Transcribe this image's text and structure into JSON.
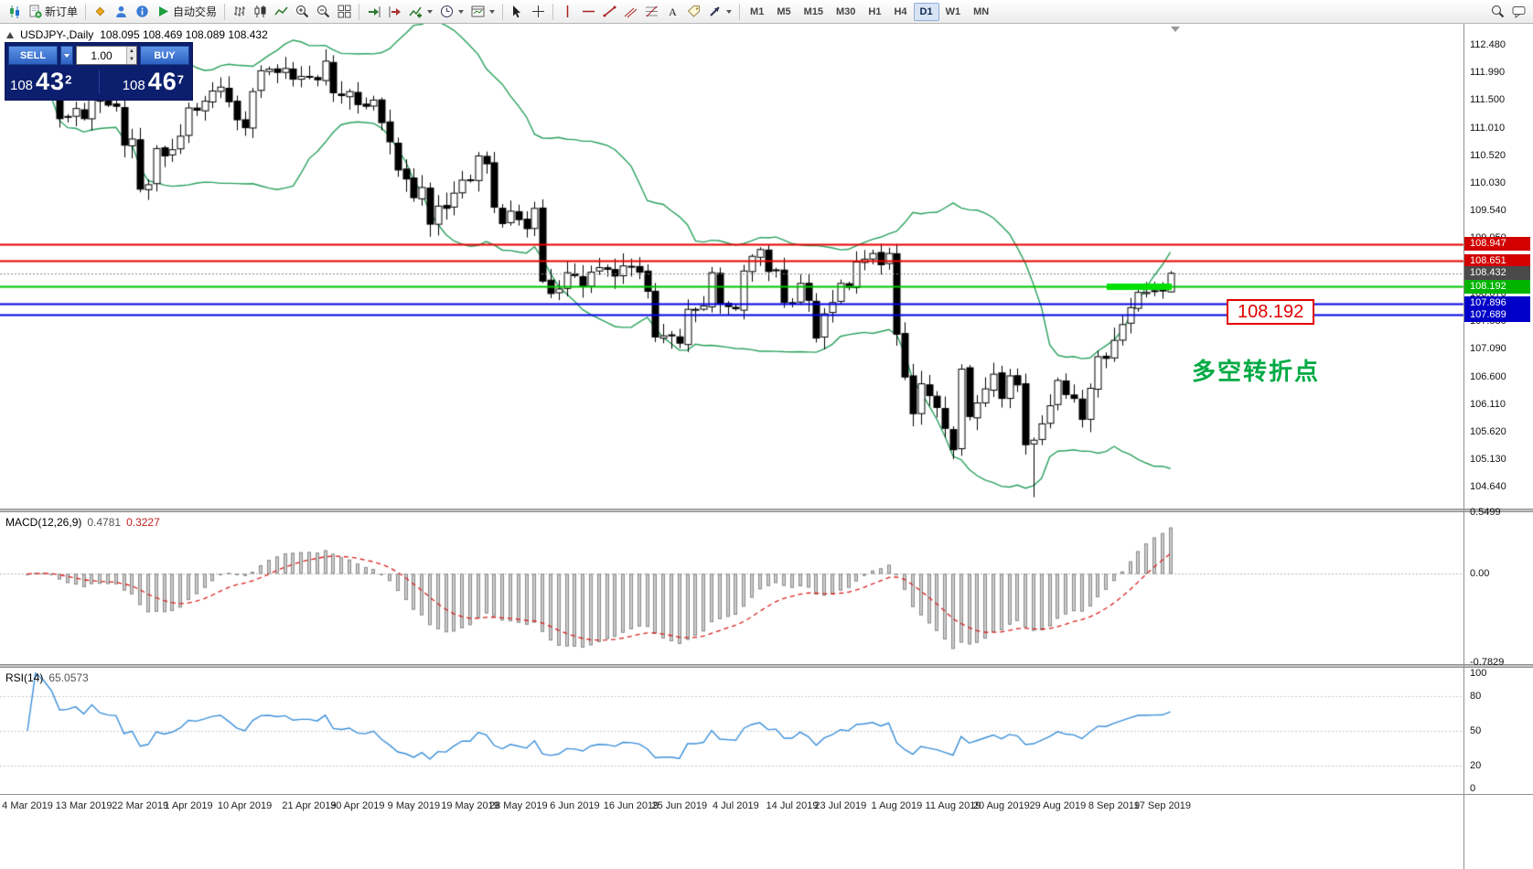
{
  "toolbar": {
    "items": [
      {
        "n": "app-icon",
        "g": "app"
      },
      {
        "n": "new-order-button",
        "g": "neworder",
        "icon": "new-order-icon",
        "label": "新订单"
      },
      {
        "sep": true
      },
      {
        "n": "market-watch-icon",
        "g": "diamond"
      },
      {
        "n": "navigator-icon",
        "g": "person"
      },
      {
        "n": "terminal-icon",
        "g": "info"
      },
      {
        "n": "auto-trading-button",
        "g": "play",
        "icon": "auto-trading-icon",
        "label": "自动交易"
      },
      {
        "sep": true
      },
      {
        "n": "bar-chart-icon",
        "g": "bars"
      },
      {
        "n": "candlestick-chart-icon",
        "g": "candles"
      },
      {
        "n": "line-chart-icon",
        "g": "linechart"
      },
      {
        "n": "zoom-in-icon",
        "g": "zoomin"
      },
      {
        "n": "zoom-out-icon",
        "g": "zoomout"
      },
      {
        "n": "tile-windows-icon",
        "g": "grid"
      },
      {
        "sep": true
      },
      {
        "n": "auto-scroll-icon",
        "g": "autoscroll"
      },
      {
        "n": "chart-shift-icon",
        "g": "shift"
      },
      {
        "n": "indicators-button",
        "g": "indicator",
        "icon": "indicators-icon",
        "dd": true
      },
      {
        "n": "periods-button",
        "g": "clock",
        "icon": "periods-icon",
        "dd": true
      },
      {
        "n": "templates-button",
        "g": "template",
        "icon": "templates-icon",
        "dd": true
      },
      {
        "sep": true
      },
      {
        "n": "cursor-icon",
        "g": "cursor"
      },
      {
        "n": "crosshair-icon",
        "g": "crosshair"
      },
      {
        "sep": true
      },
      {
        "n": "vertical-line-icon",
        "g": "vline"
      },
      {
        "n": "horizontal-line-icon",
        "g": "hline"
      },
      {
        "n": "trendline-icon",
        "g": "trend"
      },
      {
        "n": "channel-icon",
        "g": "channel"
      },
      {
        "n": "fibonacci-icon",
        "g": "fibo"
      },
      {
        "n": "text-tool-icon",
        "g": "textA"
      },
      {
        "n": "label-tool-icon",
        "g": "labeltag"
      },
      {
        "n": "arrows-button",
        "g": "arrows",
        "icon": "arrows-icon",
        "dd": true
      },
      {
        "sep": true
      }
    ],
    "timeframes": [
      {
        "label": "M1"
      },
      {
        "label": "M5"
      },
      {
        "label": "M15"
      },
      {
        "label": "M30"
      },
      {
        "label": "H1"
      },
      {
        "label": "H4"
      },
      {
        "label": "D1",
        "active": true
      },
      {
        "label": "W1"
      },
      {
        "label": "MN"
      }
    ],
    "right_items": [
      {
        "n": "search-icon",
        "g": "search"
      },
      {
        "n": "chat-icon",
        "g": "chat"
      }
    ]
  },
  "chart_header": {
    "symbol": "USDJPY-,Daily",
    "ohlc": "108.095 108.469 108.089 108.432"
  },
  "trade_panel": {
    "sell_label": "SELL",
    "buy_label": "BUY",
    "volume": "1.00",
    "sell_price": {
      "prefix": "108",
      "big": "43",
      "sup": "2"
    },
    "buy_price": {
      "prefix": "108",
      "big": "46",
      "sup": "7"
    }
  },
  "chart_data": {
    "type": "candlestick",
    "symbol": "USDJPY-",
    "timeframe": "Daily",
    "ohlc_header": "108.095 108.469 108.089 108.432",
    "y_range": [
      104.42,
      112.82
    ],
    "y_ticks": [
      "112.480",
      "111.990",
      "111.500",
      "111.010",
      "110.520",
      "110.030",
      "109.540",
      "109.050",
      "108.560",
      "108.070",
      "107.580",
      "107.090",
      "106.600",
      "106.110",
      "105.620",
      "105.130",
      "104.640"
    ],
    "closes": [
      111.75,
      111.88,
      111.77,
      111.59,
      111.17,
      111.21,
      111.35,
      111.17,
      111.72,
      111.48,
      111.41,
      111.39,
      110.7,
      110.81,
      109.92,
      110.0,
      110.64,
      110.51,
      110.62,
      110.86,
      111.36,
      111.32,
      111.48,
      111.66,
      111.73,
      111.47,
      111.15,
      111.01,
      111.65,
      112.02,
      112.05,
      111.99,
      112.06,
      111.87,
      111.92,
      111.92,
      111.86,
      112.19,
      111.63,
      111.58,
      111.65,
      111.42,
      111.39,
      111.5,
      111.1,
      110.76,
      110.26,
      110.1,
      109.77,
      109.95,
      109.3,
      109.62,
      109.58,
      109.85,
      110.08,
      110.07,
      110.51,
      110.37,
      109.6,
      109.31,
      109.53,
      109.38,
      109.22,
      109.58,
      108.29,
      108.07,
      108.15,
      108.44,
      108.39,
      108.19,
      108.45,
      108.53,
      108.5,
      108.38,
      108.56,
      108.54,
      108.45,
      108.11,
      107.3,
      107.32,
      107.32,
      107.19,
      107.79,
      107.79,
      107.85,
      108.44,
      107.88,
      107.84,
      107.8,
      108.47,
      108.73,
      108.85,
      108.46,
      108.49,
      107.91,
      107.91,
      108.25,
      107.95,
      107.28,
      107.71,
      107.91,
      108.25,
      108.18,
      108.63,
      108.68,
      108.78,
      108.58,
      108.78,
      107.35,
      106.59,
      105.94,
      106.47,
      106.26,
      106.05,
      105.68,
      105.3,
      106.73,
      105.89,
      106.13,
      106.38,
      106.64,
      106.21,
      106.61,
      106.45,
      105.39,
      105.47,
      105.76,
      106.08,
      106.53,
      106.28,
      106.21,
      105.84,
      106.39,
      106.95,
      106.92,
      107.24,
      107.52,
      107.82,
      108.09,
      108.09,
      108.12,
      108.13,
      108.43
    ],
    "overrides": [
      {
        "i": 37,
        "h": 112.4
      },
      {
        "i": 125,
        "l": 104.46
      },
      {
        "i": 142,
        "o": 108.1,
        "h": 108.47,
        "l": 108.09
      }
    ],
    "x_labels": [
      {
        "t": "4 Mar 2019",
        "i": 0
      },
      {
        "t": "13 Mar 2019",
        "i": 7
      },
      {
        "t": "22 Mar 2019",
        "i": 14
      },
      {
        "t": "1 Apr 2019",
        "i": 20
      },
      {
        "t": "10 Apr 2019",
        "i": 27
      },
      {
        "t": "21 Apr 2019",
        "i": 35
      },
      {
        "t": "30 Apr 2019",
        "i": 41
      },
      {
        "t": "9 May 2019",
        "i": 48
      },
      {
        "t": "19 May 2019",
        "i": 55
      },
      {
        "t": "28 May 2019",
        "i": 61
      },
      {
        "t": "6 Jun 2019",
        "i": 68
      },
      {
        "t": "16 Jun 2019",
        "i": 75
      },
      {
        "t": "25 Jun 2019",
        "i": 81
      },
      {
        "t": "4 Jul 2019",
        "i": 88
      },
      {
        "t": "14 Jul 2019",
        "i": 95
      },
      {
        "t": "23 Jul 2019",
        "i": 101
      },
      {
        "t": "1 Aug 2019",
        "i": 108
      },
      {
        "t": "11 Aug 2019",
        "i": 115
      },
      {
        "t": "20 Aug 2019",
        "i": 121
      },
      {
        "t": "29 Aug 2019",
        "i": 128
      },
      {
        "t": "8 Sep 2019",
        "i": 135
      },
      {
        "t": "17 Sep 2019",
        "i": 141
      }
    ],
    "hlines": [
      {
        "v": 108.947,
        "c": "#e60000",
        "w": 2,
        "label": "108.947",
        "badge": "#d20000"
      },
      {
        "v": 108.651,
        "c": "#e60000",
        "w": 2,
        "label": "108.651",
        "badge": "#d20000"
      },
      {
        "v": 108.432,
        "c": "#888888",
        "w": 1,
        "dash": true,
        "label": "108.432",
        "badge": "#4a4a4a"
      },
      {
        "v": 108.192,
        "c": "#00c400",
        "w": 2,
        "label": "108.192",
        "badge": "#00b400",
        "seg": [
          1210,
          1281
        ],
        "seg_color": "#00e000"
      },
      {
        "v": 107.896,
        "c": "#0000e6",
        "w": 2,
        "label": "107.896",
        "badge": "#0000c8"
      },
      {
        "v": 107.689,
        "c": "#0000e6",
        "w": 2,
        "label": "107.689",
        "badge": "#0000c8"
      }
    ],
    "bollinger": {
      "period": 20,
      "deviation": 2,
      "color": "#28a05c"
    },
    "candle_colors": {
      "up_fill": "#ffffff",
      "down_fill": "#000000",
      "outline": "#000000"
    },
    "macd": {
      "title": "MACD(12,26,9)",
      "main_value": "0.4781",
      "signal_value": "0.3227",
      "fast": 12,
      "slow": 26,
      "smooth": 9,
      "ticks": [
        {
          "t": "0.5499",
          "v": 0.5499
        },
        {
          "t": "0.00",
          "v": 0
        },
        {
          "t": "-0.7829",
          "v": -0.7829
        }
      ],
      "hist_color": "#cccccc",
      "hist_border": "#8a8a8a",
      "signal_color": "#d92020"
    },
    "rsi": {
      "title": "RSI(14)",
      "value": "65.0573",
      "period": 14,
      "ticks": [
        {
          "t": "100",
          "v": 100
        },
        {
          "t": "80",
          "v": 80
        },
        {
          "t": "50",
          "v": 50
        },
        {
          "t": "20",
          "v": 20
        },
        {
          "t": "0",
          "v": 0
        }
      ],
      "levels": [
        80,
        50,
        20
      ],
      "color": "#3c8fd9"
    },
    "annotation": {
      "text": "多空转折点",
      "color": "#00aa44"
    },
    "callout": {
      "text": "108.192",
      "color": "#e00000"
    }
  }
}
